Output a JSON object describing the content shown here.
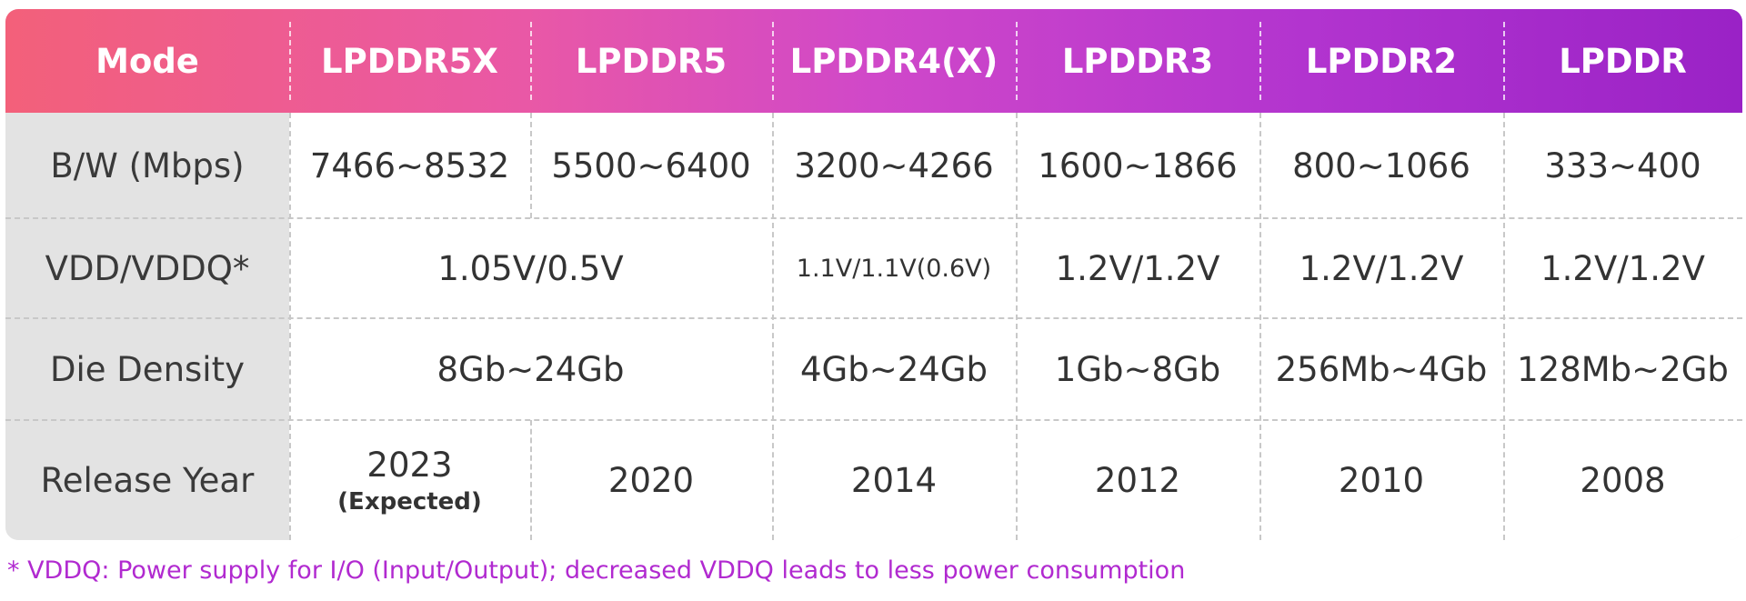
{
  "table": {
    "headers": [
      "Mode",
      "LPDDR5X",
      "LPDDR5",
      "LPDDR4(X)",
      "LPDDR3",
      "LPDDR2",
      "LPDDR"
    ],
    "rows": [
      {
        "label": "B/W (Mbps)",
        "cells": [
          "7466~8532",
          "5500~6400",
          "3200~4266",
          "1600~1866",
          "800~1066",
          "333~400"
        ]
      },
      {
        "label": "VDD/VDDQ*",
        "cells": [
          "1.05V/0.5V",
          "1.1V/1.1V(0.6V)",
          "1.2V/1.2V",
          "1.2V/1.2V",
          "1.2V/1.2V"
        ]
      },
      {
        "label": "Die Density",
        "cells": [
          "8Gb~24Gb",
          "4Gb~24Gb",
          "1Gb~8Gb",
          "256Mb~4Gb",
          "128Mb~2Gb"
        ]
      },
      {
        "label": "Release Year",
        "cells": [
          "2023",
          "2020",
          "2014",
          "2012",
          "2010",
          "2008"
        ],
        "note": "(Expected)"
      }
    ]
  },
  "footnote": "* VDDQ: Power supply for I/O (Input/Output); decreased VDDQ leads to less power consumption",
  "colors": {
    "note": "#b12ad0",
    "header_start": "#f3607a",
    "header_end": "#9a22c6"
  }
}
